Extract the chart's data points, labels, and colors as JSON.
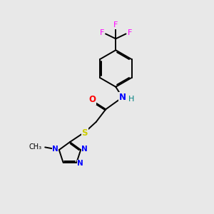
{
  "bg_color": "#e8e8e8",
  "bond_color": "#000000",
  "atom_colors": {
    "F": "#ff00ff",
    "O": "#ff0000",
    "N": "#0000ff",
    "S": "#cccc00",
    "H": "#008080",
    "C": "#000000"
  },
  "figsize": [
    3.0,
    3.0
  ],
  "dpi": 100,
  "xlim": [
    0,
    10
  ],
  "ylim": [
    0,
    12
  ]
}
